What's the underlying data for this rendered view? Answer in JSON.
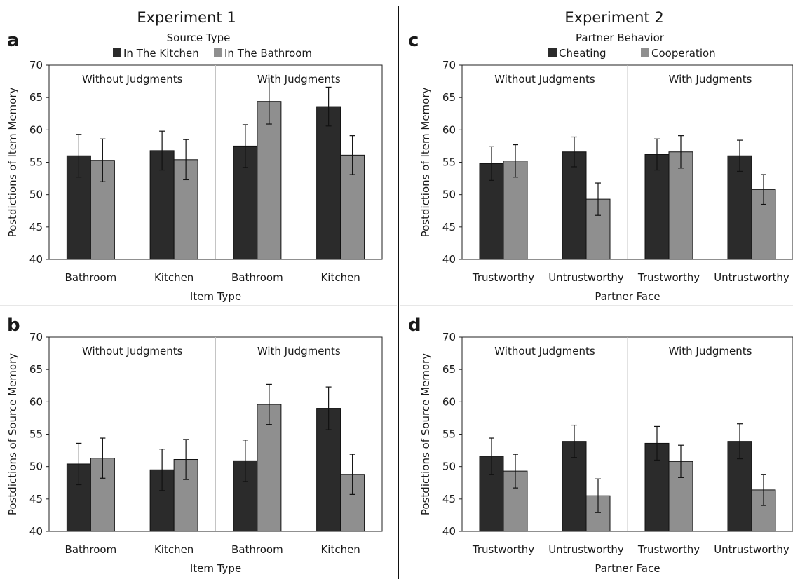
{
  "experiments": [
    {
      "title": "Experiment 1",
      "legend_title": "Source Type",
      "legend": [
        "In The Kitchen",
        "In The Bathroom"
      ]
    },
    {
      "title": "Experiment 2",
      "legend_title": "Partner Behavior",
      "legend": [
        "Cheating",
        "Cooperation"
      ]
    }
  ],
  "colors": {
    "dark_bar": "#2b2b2b",
    "light_bar": "#8f8f8f",
    "error_bar": "#111111",
    "divider": "#c4c4c4"
  },
  "chart_data": [
    {
      "panel": "a",
      "type": "bar",
      "xlabel": "Item Type",
      "ylabel": "Postdictions of Item Memory",
      "ylim": [
        40,
        70
      ],
      "yticks": [
        40,
        45,
        50,
        55,
        60,
        65,
        70
      ],
      "sections": [
        "Without Judgments",
        "With Judgments"
      ],
      "categories": [
        "Bathroom",
        "Kitchen",
        "Bathroom",
        "Kitchen"
      ],
      "series": [
        {
          "name": "In The Kitchen",
          "values": [
            56.0,
            56.8,
            57.5,
            63.6
          ],
          "error": [
            3.3,
            3.0,
            3.3,
            3.0
          ]
        },
        {
          "name": "In The Bathroom",
          "values": [
            55.3,
            55.4,
            64.4,
            56.1
          ],
          "error": [
            3.3,
            3.1,
            3.5,
            3.0
          ]
        }
      ]
    },
    {
      "panel": "b",
      "type": "bar",
      "xlabel": "Item Type",
      "ylabel": "Postdictions of Source Memory",
      "ylim": [
        40,
        70
      ],
      "yticks": [
        40,
        45,
        50,
        55,
        60,
        65,
        70
      ],
      "sections": [
        "Without Judgments",
        "With Judgments"
      ],
      "categories": [
        "Bathroom",
        "Kitchen",
        "Bathroom",
        "Kitchen"
      ],
      "series": [
        {
          "name": "In The Kitchen",
          "values": [
            50.4,
            49.5,
            50.9,
            59.0
          ],
          "error": [
            3.2,
            3.2,
            3.2,
            3.3
          ]
        },
        {
          "name": "In The Bathroom",
          "values": [
            51.3,
            51.1,
            59.6,
            48.8
          ],
          "error": [
            3.1,
            3.1,
            3.1,
            3.1
          ]
        }
      ]
    },
    {
      "panel": "c",
      "type": "bar",
      "xlabel": "Partner Face",
      "ylabel": "Postdictions of Item Memory",
      "ylim": [
        40,
        70
      ],
      "yticks": [
        40,
        45,
        50,
        55,
        60,
        65,
        70
      ],
      "sections": [
        "Without Judgments",
        "With Judgments"
      ],
      "categories": [
        "Trustworthy",
        "Untrustworthy",
        "Trustworthy",
        "Untrustworthy"
      ],
      "series": [
        {
          "name": "Cheating",
          "values": [
            54.8,
            56.6,
            56.2,
            56.0
          ],
          "error": [
            2.6,
            2.3,
            2.4,
            2.4
          ]
        },
        {
          "name": "Cooperation",
          "values": [
            55.2,
            49.3,
            56.6,
            50.8
          ],
          "error": [
            2.5,
            2.5,
            2.5,
            2.3
          ]
        }
      ]
    },
    {
      "panel": "d",
      "type": "bar",
      "xlabel": "Partner Face",
      "ylabel": "Postdictions of Source Memory",
      "ylim": [
        40,
        70
      ],
      "yticks": [
        40,
        45,
        50,
        55,
        60,
        65,
        70
      ],
      "sections": [
        "Without Judgments",
        "With Judgments"
      ],
      "categories": [
        "Trustworthy",
        "Untrustworthy",
        "Trustworthy",
        "Untrustworthy"
      ],
      "series": [
        {
          "name": "Cheating",
          "values": [
            51.6,
            53.9,
            53.6,
            53.9
          ],
          "error": [
            2.8,
            2.5,
            2.6,
            2.7
          ]
        },
        {
          "name": "Cooperation",
          "values": [
            49.3,
            45.5,
            50.8,
            46.4
          ],
          "error": [
            2.6,
            2.6,
            2.5,
            2.4
          ]
        }
      ]
    }
  ]
}
